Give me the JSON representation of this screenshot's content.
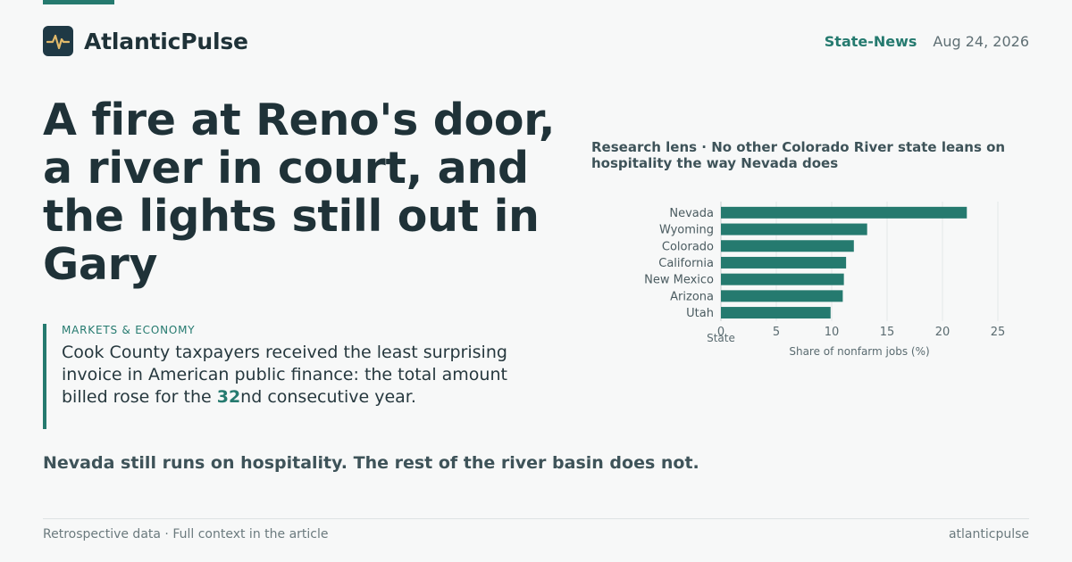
{
  "brand": {
    "name": "AtlanticPulse",
    "accent": "#257a6f"
  },
  "header": {
    "section": "State-News",
    "date": "Aug 24, 2026"
  },
  "article": {
    "headline": "A fire at Reno's door, a river in court, and the lights still out in Gary",
    "kicker": "MARKETS & ECONOMY",
    "deck_before": "Cook County taxpayers received the least surprising invoice in American public finance: the total amount billed rose for the ",
    "deck_number": "32",
    "deck_after": "nd consecutive year.",
    "tagline": "Nevada still runs on hospitality. The rest of the river basin does not."
  },
  "chart_data": {
    "type": "bar",
    "orientation": "horizontal",
    "title": "Research lens · No other Colorado River state leans on hospitality the way Nevada does",
    "categories": [
      "Nevada",
      "Wyoming",
      "Colorado",
      "California",
      "New Mexico",
      "Arizona",
      "Utah"
    ],
    "values": [
      22.2,
      13.2,
      12.0,
      11.3,
      11.1,
      11.0,
      9.9
    ],
    "xlabel": "Share of nonfarm jobs (%)",
    "ylabel": "State",
    "xlim": [
      0,
      25
    ],
    "xticks": [
      0,
      5,
      10,
      15,
      20,
      25
    ],
    "grid": true,
    "bar_color": "#257a6f"
  },
  "footer": {
    "left": "Retrospective data · Full context in the article",
    "right": "atlanticpulse"
  }
}
